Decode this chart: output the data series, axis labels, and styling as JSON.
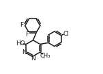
{
  "bg_color": "#ffffff",
  "line_color": "#1a1a1a",
  "line_width": 1.1,
  "font_size": 6.5,
  "xlim": [
    0,
    10
  ],
  "ylim": [
    0,
    7.5
  ]
}
